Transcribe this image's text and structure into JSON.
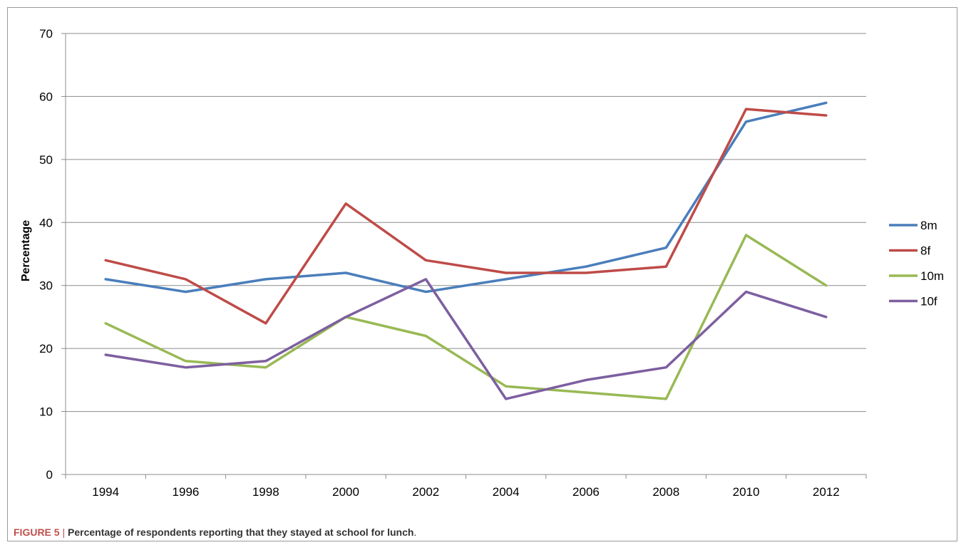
{
  "chart_data": {
    "type": "line",
    "title": "",
    "xlabel": "",
    "ylabel": "Percentage",
    "ylim": [
      0,
      70
    ],
    "yticks": [
      0,
      10,
      20,
      30,
      40,
      50,
      60,
      70
    ],
    "categories": [
      "1994",
      "1996",
      "1998",
      "2000",
      "2002",
      "2004",
      "2006",
      "2008",
      "2010",
      "2012"
    ],
    "grid": true,
    "legend_position": "right",
    "series": [
      {
        "name": "8m",
        "color": "#4a7ebb",
        "values": [
          31,
          29,
          31,
          32,
          29,
          31,
          33,
          36,
          56,
          59
        ]
      },
      {
        "name": "8f",
        "color": "#be4b48",
        "values": [
          34,
          31,
          24,
          43,
          34,
          32,
          32,
          33,
          58,
          57
        ]
      },
      {
        "name": "10m",
        "color": "#98b954",
        "values": [
          24,
          18,
          17,
          25,
          22,
          14,
          13,
          12,
          38,
          30
        ]
      },
      {
        "name": "10f",
        "color": "#7d5fa0",
        "values": [
          19,
          17,
          18,
          25,
          31,
          12,
          15,
          17,
          29,
          25
        ]
      }
    ]
  },
  "caption": {
    "figure_label": "FIGURE 5",
    "separator": "|",
    "text": "Percentage of respondents reporting that they stayed at school for lunch",
    "end": "."
  }
}
